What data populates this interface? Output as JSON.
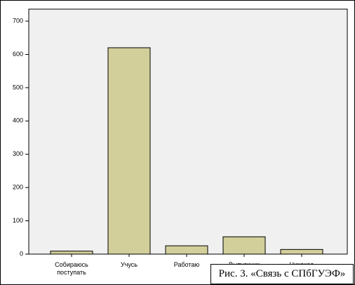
{
  "chart_data": {
    "type": "bar",
    "categories": [
      "Собираюсь поступать",
      "Учусь",
      "Работаю",
      "Выпускник",
      "Никакое"
    ],
    "values": [
      9,
      620,
      25,
      52,
      14
    ],
    "color": "#d3cf9b",
    "ylim": [
      0,
      736
    ],
    "yticks": [
      0,
      100,
      200,
      300,
      400,
      500,
      600,
      700
    ]
  },
  "caption": "Рис. 3. «Связь с СПбГУЭФ»"
}
